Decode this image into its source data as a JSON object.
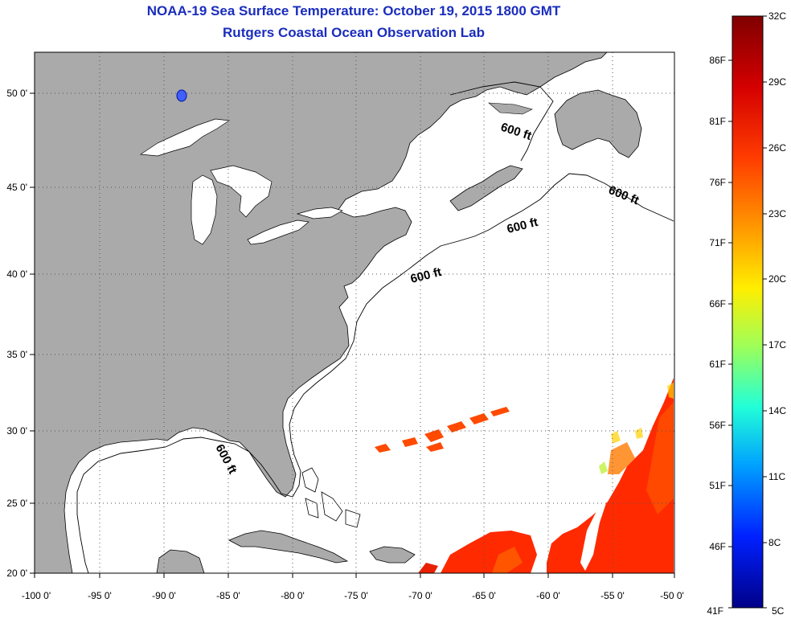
{
  "title": "NOAA-19 Sea Surface Temperature:  October 19, 2015 1800 GMT",
  "subtitle": "Rutgers Coastal Ocean Observation Lab",
  "map": {
    "lon_ticks": [
      "-100 0'",
      "-95 0'",
      "-90 0'",
      "-85 0'",
      "-80 0'",
      "-75 0'",
      "-70 0'",
      "-65 0'",
      "-60 0'",
      "-55 0'",
      "-50 0'"
    ],
    "lat_ticks": [
      "50 0'",
      "45 0'",
      "40 0'",
      "35 0'",
      "30 0'",
      "25 0'",
      "20 0'"
    ],
    "contour_labels": [
      "600 ft",
      "600 ft",
      "600 ft",
      "600 ft",
      "600 ft"
    ],
    "colors": {
      "land": "#aaaaaa",
      "ocean": "#ffffff",
      "grid": "#555555"
    }
  },
  "colorbar": {
    "celsius": [
      "32C",
      "29C",
      "26C",
      "23C",
      "20C",
      "17C",
      "14C",
      "11C",
      "8C",
      "5C"
    ],
    "fahrenheit": [
      "86F",
      "81F",
      "76F",
      "71F",
      "66F",
      "61F",
      "56F",
      "51F",
      "46F",
      "41F"
    ]
  }
}
